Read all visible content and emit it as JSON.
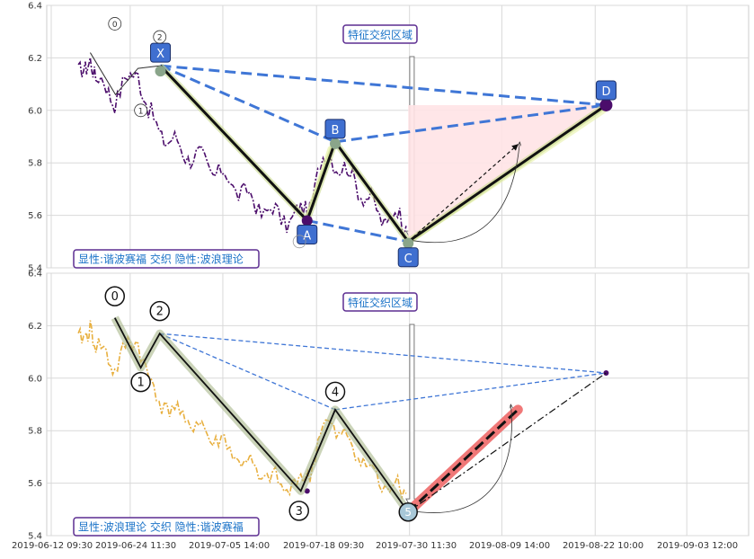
{
  "chart_data": {
    "type": "line",
    "x_ticks": [
      "2019-06-12 09:30",
      "2019-06-24 11:30",
      "2019-07-05 14:00",
      "2019-07-18 09:30",
      "2019-07-30 11:30",
      "2019-08-09 14:00",
      "2019-08-22 10:00",
      "2019-09-03 12:00"
    ],
    "y_ticks": [
      "5.4",
      "5.6",
      "5.8",
      "6.0",
      "6.2",
      "6.4"
    ],
    "ylim": [
      5.4,
      6.4
    ],
    "grid": true,
    "colors": {
      "price_top": "#4b0d6b",
      "price_bottom": "#e8b040",
      "dashed_blue": "#3f76d6",
      "box_fill": "#3f6fd0",
      "text_box_border": "#5c2d91",
      "text_box_text": "#1b73c8",
      "pink_fill": "#ffe3e6",
      "red_band": "#f07878"
    },
    "panels": [
      {
        "name": "top",
        "annotation": "特征交织区域",
        "caption": "显性:谐波赛福 交织 隐性:波浪理论",
        "harmonic_points": [
          {
            "label": "X",
            "t": 0.162,
            "y": 6.17
          },
          {
            "label": "A",
            "t": 0.371,
            "y": 5.58
          },
          {
            "label": "B",
            "t": 0.411,
            "y": 5.88
          },
          {
            "label": "C",
            "t": 0.515,
            "y": 5.5
          },
          {
            "label": "D",
            "t": 0.797,
            "y": 6.02
          }
        ],
        "wave_labels": [
          {
            "label": "0",
            "t": 0.097,
            "y": 6.33
          },
          {
            "label": "1",
            "t": 0.134,
            "y": 6.0
          },
          {
            "label": "2",
            "t": 0.161,
            "y": 6.28
          }
        ]
      },
      {
        "name": "bottom",
        "annotation": "特征交织区域",
        "caption": "显性:波浪理论 交织 隐性:谐波赛福",
        "wave_points": [
          {
            "label": "0",
            "t": 0.097,
            "y": 6.23
          },
          {
            "label": "1",
            "t": 0.134,
            "y": 6.04
          },
          {
            "label": "2",
            "t": 0.161,
            "y": 6.17
          },
          {
            "label": "3",
            "t": 0.362,
            "y": 5.57
          },
          {
            "label": "4",
            "t": 0.411,
            "y": 5.88
          },
          {
            "label": "5",
            "t": 0.515,
            "y": 5.49
          }
        ]
      }
    ]
  }
}
